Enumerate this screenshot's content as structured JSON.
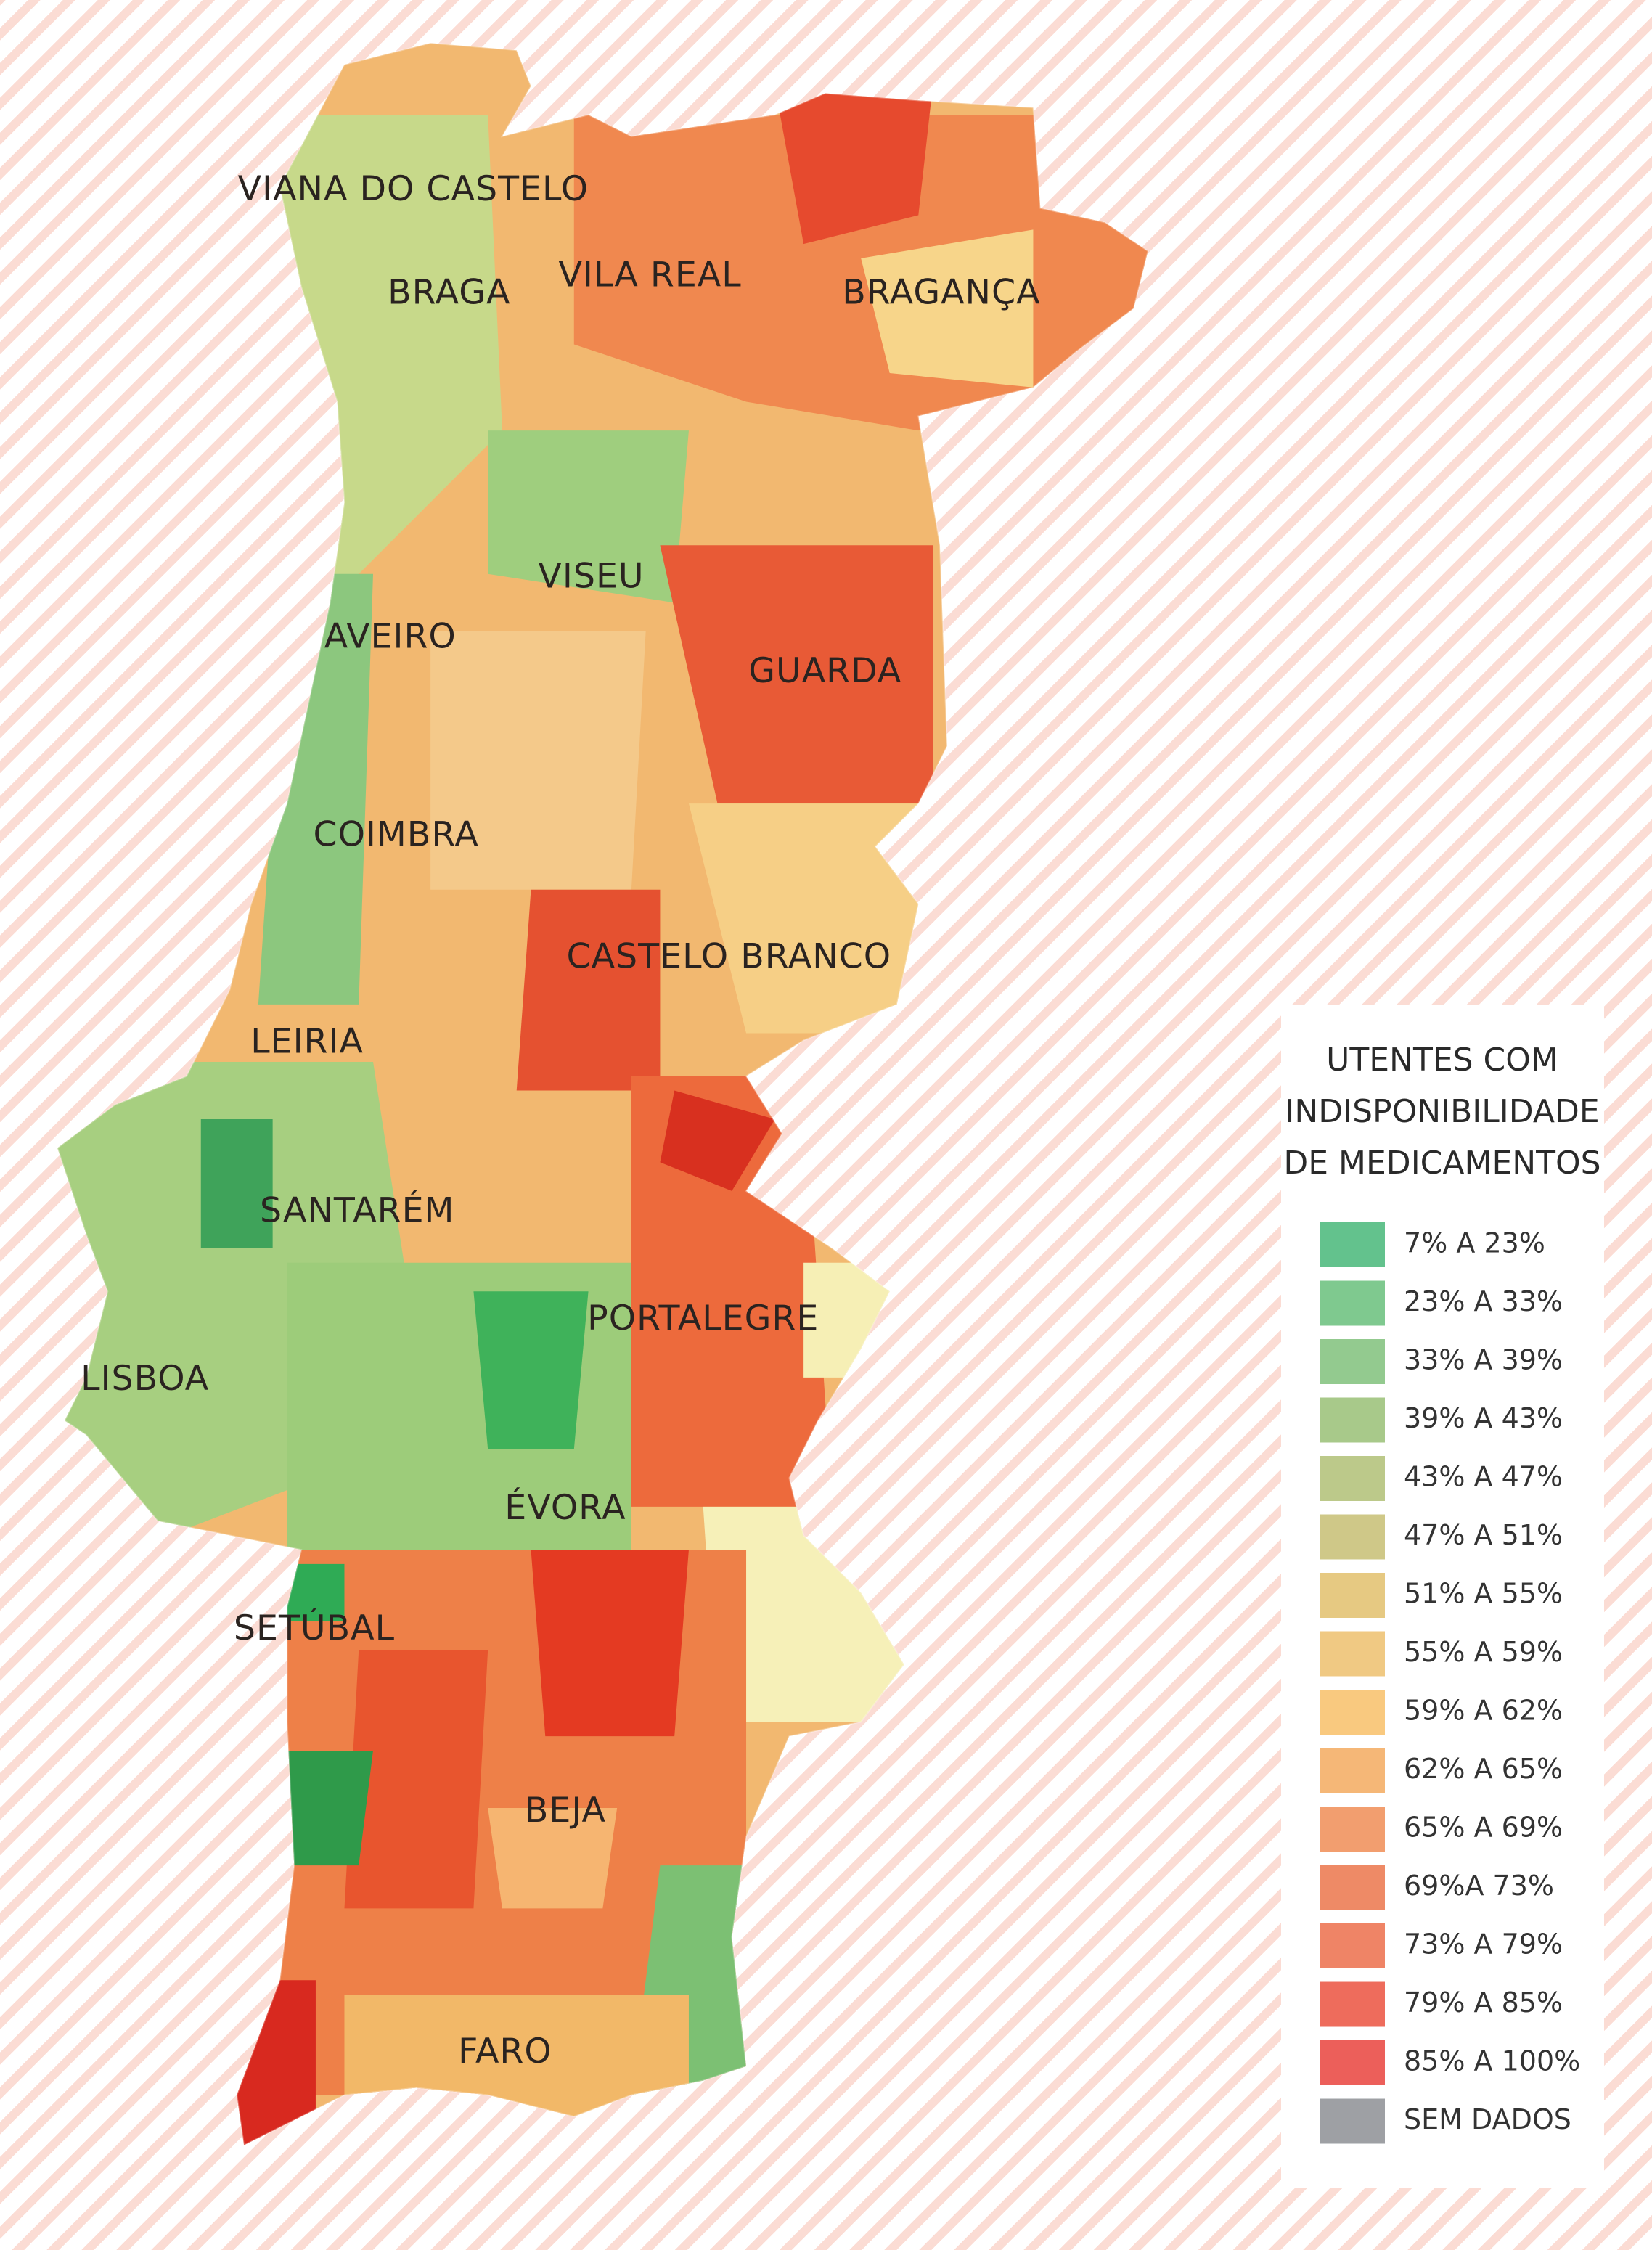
{
  "map": {
    "labels": [
      "VIANA DO CASTELO",
      "BRAGA",
      "VILA REAL",
      "BRAGANÇA",
      "VISEU",
      "AVEIRO",
      "GUARDA",
      "COIMBRA",
      "CASTELO BRANCO",
      "LEIRIA",
      "SANTARÉM",
      "PORTALEGRE",
      "LISBOA",
      "ÉVORA",
      "SETÚBAL",
      "BEJA",
      "FARO"
    ]
  },
  "legend": {
    "title": [
      "UTENTES COM",
      "INDISPONIBILIDADE",
      "DE MEDICAMENTOS"
    ],
    "items": [
      {
        "label": "7% A 23%",
        "color": "#63c28d"
      },
      {
        "label": "23% A 33%",
        "color": "#7fc98f"
      },
      {
        "label": "33% A 39%",
        "color": "#93ca8f"
      },
      {
        "label": "39% A 43%",
        "color": "#a8c98a"
      },
      {
        "label": "43% A 47%",
        "color": "#bcc98a"
      },
      {
        "label": "47% A 51%",
        "color": "#cfc888"
      },
      {
        "label": "51% A 55%",
        "color": "#e6c982"
      },
      {
        "label": "55% A 59%",
        "color": "#f0c983"
      },
      {
        "label": "59% A 62%",
        "color": "#f9c97f"
      },
      {
        "label": "62% A 65%",
        "color": "#f5b777"
      },
      {
        "label": "65% A 69%",
        "color": "#f29e6f"
      },
      {
        "label": "69%A 73%",
        "color": "#ee8a66"
      },
      {
        "label": "73% A 79%",
        "color": "#ef8466"
      },
      {
        "label": "79% A 85%",
        "color": "#ee6c5c"
      },
      {
        "label": "85% A 100%",
        "color": "#ec5f5a"
      },
      {
        "label": "SEM DADOS",
        "color": "#9ea0a4"
      }
    ]
  }
}
